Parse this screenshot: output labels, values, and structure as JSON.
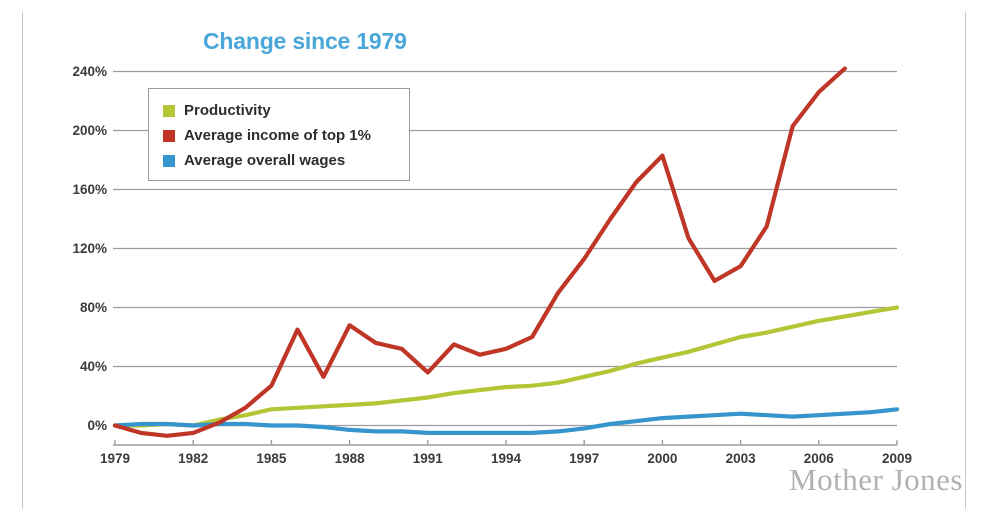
{
  "chart_data": {
    "type": "line",
    "title": "Change since 1979",
    "title_color": "#4ba7d9",
    "watermark": "Mother Jones",
    "x_range": [
      1979,
      2009
    ],
    "y_range": [
      0,
      240
    ],
    "xticks": [
      1979,
      1982,
      1985,
      1988,
      1991,
      1994,
      1997,
      2000,
      2003,
      2006,
      2009
    ],
    "yticks": [
      0,
      40,
      80,
      120,
      160,
      200,
      240
    ],
    "ytick_suffix": "%",
    "grid": true,
    "legend_position": "upper-left",
    "grid_color": "#9d9da0",
    "label_color": "#3b3b3d",
    "series": [
      {
        "id": "productivity",
        "name": "Productivity",
        "color": "#b4c636",
        "points": [
          [
            1979,
            0
          ],
          [
            1980,
            0
          ],
          [
            1981,
            1
          ],
          [
            1982,
            0
          ],
          [
            1983,
            4
          ],
          [
            1984,
            7
          ],
          [
            1985,
            11
          ],
          [
            1986,
            12
          ],
          [
            1987,
            13
          ],
          [
            1988,
            14
          ],
          [
            1989,
            15
          ],
          [
            1990,
            17
          ],
          [
            1991,
            19
          ],
          [
            1992,
            22
          ],
          [
            1993,
            24
          ],
          [
            1994,
            26
          ],
          [
            1995,
            27
          ],
          [
            1996,
            29
          ],
          [
            1997,
            33
          ],
          [
            1998,
            37
          ],
          [
            1999,
            42
          ],
          [
            2000,
            46
          ],
          [
            2001,
            50
          ],
          [
            2002,
            55
          ],
          [
            2003,
            60
          ],
          [
            2004,
            63
          ],
          [
            2005,
            67
          ],
          [
            2006,
            71
          ],
          [
            2007,
            74
          ],
          [
            2008,
            77
          ],
          [
            2009,
            80
          ]
        ]
      },
      {
        "id": "top1-income",
        "name": "Average income of top 1%",
        "color": "#bf3627",
        "points": [
          [
            1979,
            0
          ],
          [
            1980,
            -5
          ],
          [
            1981,
            -7
          ],
          [
            1982,
            -5
          ],
          [
            1983,
            2
          ],
          [
            1984,
            12
          ],
          [
            1985,
            27
          ],
          [
            1986,
            65
          ],
          [
            1987,
            33
          ],
          [
            1988,
            68
          ],
          [
            1989,
            56
          ],
          [
            1990,
            52
          ],
          [
            1991,
            36
          ],
          [
            1992,
            55
          ],
          [
            1993,
            48
          ],
          [
            1994,
            52
          ],
          [
            1995,
            60
          ],
          [
            1996,
            90
          ],
          [
            1997,
            113
          ],
          [
            1998,
            140
          ],
          [
            1999,
            165
          ],
          [
            2000,
            183
          ],
          [
            2001,
            127
          ],
          [
            2002,
            98
          ],
          [
            2003,
            108
          ],
          [
            2004,
            135
          ],
          [
            2005,
            203
          ],
          [
            2006,
            226
          ],
          [
            2007,
            242
          ]
        ]
      },
      {
        "id": "overall-wages",
        "name": "Average overall wages",
        "color": "#3695cc",
        "points": [
          [
            1979,
            0
          ],
          [
            1980,
            1
          ],
          [
            1981,
            1
          ],
          [
            1982,
            0
          ],
          [
            1983,
            1
          ],
          [
            1984,
            1
          ],
          [
            1985,
            0
          ],
          [
            1986,
            0
          ],
          [
            1987,
            -1
          ],
          [
            1988,
            -3
          ],
          [
            1989,
            -4
          ],
          [
            1990,
            -4
          ],
          [
            1991,
            -5
          ],
          [
            1992,
            -5
          ],
          [
            1993,
            -5
          ],
          [
            1994,
            -5
          ],
          [
            1995,
            -5
          ],
          [
            1996,
            -4
          ],
          [
            1997,
            -2
          ],
          [
            1998,
            1
          ],
          [
            1999,
            3
          ],
          [
            2000,
            5
          ],
          [
            2001,
            6
          ],
          [
            2002,
            7
          ],
          [
            2003,
            8
          ],
          [
            2004,
            7
          ],
          [
            2005,
            6
          ],
          [
            2006,
            7
          ],
          [
            2007,
            8
          ],
          [
            2008,
            9
          ],
          [
            2009,
            11
          ]
        ]
      }
    ]
  }
}
